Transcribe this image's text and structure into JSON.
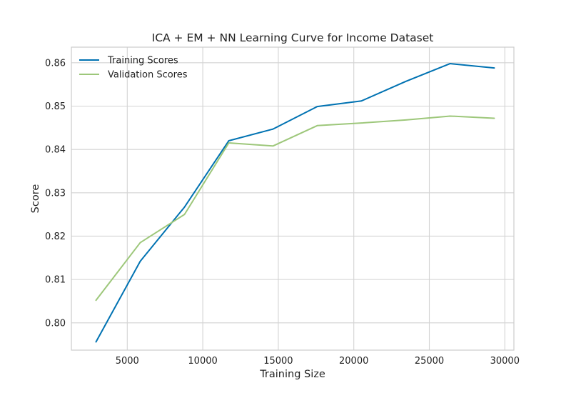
{
  "chart_data": {
    "type": "line",
    "title": "ICA + EM + NN Learning Curve for Income Dataset",
    "xlabel": "Training Size",
    "ylabel": "Score",
    "xlim": [
      1300,
      30600
    ],
    "ylim": [
      0.7937,
      0.8636
    ],
    "xticks": [
      5000,
      10000,
      15000,
      20000,
      25000,
      30000
    ],
    "yticks": [
      0.8,
      0.81,
      0.82,
      0.83,
      0.84,
      0.85,
      0.86
    ],
    "xtick_labels": [
      "5000",
      "10000",
      "15000",
      "20000",
      "25000",
      "30000"
    ],
    "ytick_labels": [
      "0.80",
      "0.81",
      "0.82",
      "0.83",
      "0.84",
      "0.85",
      "0.86"
    ],
    "grid": true,
    "legend_position": "top-left",
    "x": [
      2930,
      5860,
      8790,
      11720,
      14650,
      17580,
      20510,
      23440,
      26370,
      29300
    ],
    "series": [
      {
        "name": "Training Scores",
        "color": "#0072b2",
        "values": [
          0.7956,
          0.8142,
          0.8267,
          0.842,
          0.8447,
          0.8499,
          0.8512,
          0.8557,
          0.8598,
          0.8588
        ]
      },
      {
        "name": "Validation Scores",
        "color": "#9dc77a",
        "values": [
          0.8052,
          0.8185,
          0.825,
          0.8415,
          0.8408,
          0.8455,
          0.8461,
          0.8468,
          0.8477,
          0.8472
        ]
      }
    ]
  }
}
